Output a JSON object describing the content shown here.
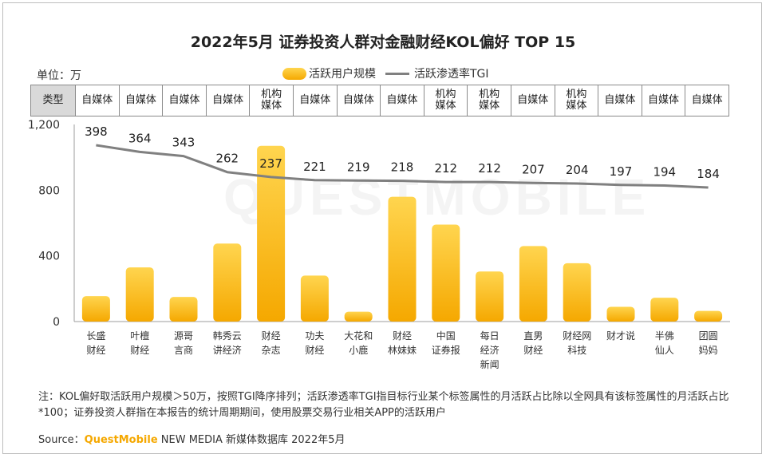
{
  "title": "2022年5月 证券投资人群对金融财经KOL偏好 TOP 15",
  "unit_label": "单位：万",
  "legend": {
    "bar": "活跃用户规模",
    "line": "活跃渗透率TGI"
  },
  "type_header": "类型",
  "types": [
    "自媒体",
    "自媒体",
    "自媒体",
    "自媒体",
    "机构\n媒体",
    "自媒体",
    "自媒体",
    "自媒体",
    "机构\n媒体",
    "机构\n媒体",
    "自媒体",
    "机构\n媒体",
    "自媒体",
    "自媒体",
    "自媒体"
  ],
  "watermark": "QUESTMOBILE",
  "chart_data": {
    "type": "bar",
    "title": "2022年5月 证券投资人群对金融财经KOL偏好 TOP 15",
    "categories": [
      "长盛\n财经",
      "叶檀\n财经",
      "源哥\n言商",
      "韩秀云\n讲经济",
      "财经\n杂志",
      "功夫\n财经",
      "大花和\n小鹿",
      "财经\n林妹妹",
      "中国\n证券报",
      "每日\n经济\n新闻",
      "直男\n财经",
      "财经网\n科技",
      "财才说",
      "半佛\n仙人",
      "团圆\n妈妈"
    ],
    "series": [
      {
        "name": "活跃用户规模",
        "type": "bar",
        "values": [
          155,
          330,
          150,
          475,
          1070,
          280,
          60,
          760,
          590,
          305,
          460,
          355,
          90,
          145,
          65
        ]
      },
      {
        "name": "活跃渗透率TGI",
        "type": "line",
        "values": [
          398,
          364,
          343,
          262,
          237,
          221,
          219,
          218,
          212,
          212,
          207,
          204,
          197,
          194,
          184
        ]
      }
    ],
    "ylim": [
      0,
      1200
    ],
    "yticks": [
      "0",
      "400",
      "800",
      "1,200"
    ],
    "ytick_values": [
      0,
      400,
      800,
      1200
    ],
    "tgi_labels": [
      "398",
      "364",
      "343",
      "262",
      "237",
      "221",
      "219",
      "218",
      "212",
      "212",
      "207",
      "204",
      "197",
      "194",
      "184"
    ]
  },
  "note": "注：KOL偏好取活跃用户规模＞50万，按照TGI降序排列；活跃渗透率TGI指目标行业某个标签属性的月活跃占比除以全网具有该标签属性的月活跃占比*100；证券投资人群指在本报告的统计周期期间，使用股票交易行业相关APP的活跃用户",
  "source": {
    "prefix": "Source：",
    "brand": "QuestMobile",
    "rest": " NEW MEDIA 新媒体数据库  2022年5月"
  },
  "colors": {
    "bar_top": "#ffd54f",
    "bar_bottom": "#f5a800",
    "line": "#808080",
    "header_bg": "#d9d9d9"
  }
}
